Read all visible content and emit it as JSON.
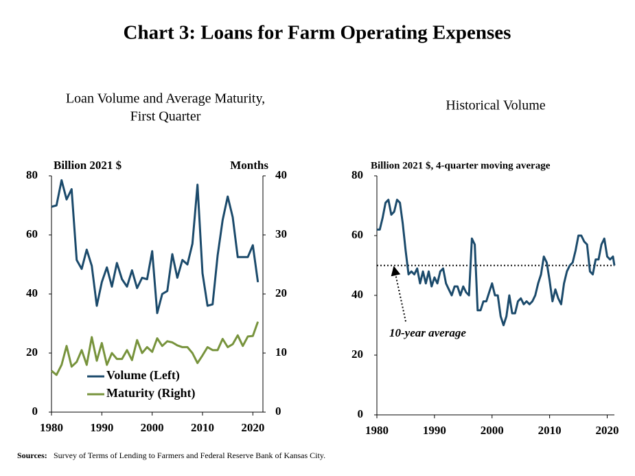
{
  "title": "Chart 3: Loans for Farm Operating Expenses",
  "source_label": "Sources:",
  "source": "Survey of Terms of Lending to Farmers and Federal Reserve Bank of Kansas City.",
  "chart_data": [
    {
      "type": "line",
      "subtitle": [
        "Loan Volume and Average Maturity,",
        "First Quarter"
      ],
      "y_label": "Billion 2021 $",
      "y2_label": "Months",
      "x": [
        1980,
        1981,
        1982,
        1983,
        1984,
        1985,
        1986,
        1987,
        1988,
        1989,
        1990,
        1991,
        1992,
        1993,
        1994,
        1995,
        1996,
        1997,
        1998,
        1999,
        2000,
        2001,
        2002,
        2003,
        2004,
        2005,
        2006,
        2007,
        2008,
        2009,
        2010,
        2011,
        2012,
        2013,
        2014,
        2015,
        2016,
        2017,
        2018,
        2019,
        2020,
        2021
      ],
      "series": [
        {
          "name": "Volume (Left)",
          "color": "#1b4a6b",
          "values": [
            69.5,
            70,
            78.5,
            72,
            75.5,
            51.5,
            48.5,
            55,
            49.5,
            36,
            44,
            49,
            42.5,
            50.5,
            45,
            42.5,
            48,
            42,
            45.5,
            45,
            54.5,
            33.5,
            40,
            41,
            53.5,
            45.5,
            51.5,
            50,
            57,
            77,
            47,
            36,
            36.5,
            53,
            65,
            73,
            66,
            52.5,
            52.5,
            52.5,
            56.5,
            44
          ]
        },
        {
          "name": "Maturity (Right)",
          "color": "#77933c",
          "axis": "y2",
          "values": [
            7,
            6.3,
            8,
            11.2,
            7.7,
            8.5,
            10.5,
            8,
            12.7,
            8.7,
            11.7,
            8,
            10,
            9,
            9,
            10.5,
            8.8,
            12.2,
            10,
            11,
            10.2,
            12.5,
            11.2,
            12,
            11.8,
            11.3,
            11,
            11,
            10,
            8.3,
            9.6,
            11,
            10.5,
            10.5,
            12.4,
            11,
            11.5,
            13,
            11.2,
            12.8,
            12.9,
            15.3
          ]
        }
      ],
      "xlim": [
        1980,
        2022
      ],
      "xticks": [
        1980,
        1990,
        2000,
        2010,
        2020
      ],
      "ylim": [
        0,
        80
      ],
      "yticks": [
        0,
        20,
        40,
        60,
        80
      ],
      "y2lim": [
        0,
        40
      ],
      "y2ticks": [
        0,
        10,
        20,
        30,
        40
      ],
      "legend": "lower left"
    },
    {
      "type": "line",
      "subtitle": [
        "Historical Volume"
      ],
      "y_label": "Billion 2021 $, 4-quarter moving average",
      "x": [
        1980,
        1980.5,
        1981,
        1981.5,
        1982,
        1982.5,
        1983,
        1983.5,
        1984,
        1984.5,
        1985,
        1985.5,
        1986,
        1986.5,
        1987,
        1987.5,
        1988,
        1988.5,
        1989,
        1989.5,
        1990,
        1990.5,
        1991,
        1991.5,
        1992,
        1992.5,
        1993,
        1993.5,
        1994,
        1994.5,
        1995,
        1995.5,
        1996,
        1996.5,
        1997,
        1997.5,
        1998,
        1998.5,
        1999,
        1999.5,
        2000,
        2000.5,
        2001,
        2001.5,
        2002,
        2002.5,
        2003,
        2003.5,
        2004,
        2004.5,
        2005,
        2005.5,
        2006,
        2006.5,
        2007,
        2007.5,
        2008,
        2008.5,
        2009,
        2009.5,
        2010,
        2010.5,
        2011,
        2011.5,
        2012,
        2012.5,
        2013,
        2013.5,
        2014,
        2014.5,
        2015,
        2015.5,
        2016,
        2016.5,
        2017,
        2017.5,
        2018,
        2018.5,
        2019,
        2019.5,
        2020,
        2020.5,
        2021,
        2021.25
      ],
      "series": [
        {
          "color": "#1b4a6b",
          "values": [
            62,
            62,
            66,
            71,
            72,
            67,
            68,
            72,
            71,
            64,
            55,
            47,
            48,
            47,
            49,
            44,
            48,
            44,
            48,
            43,
            46,
            44,
            48,
            49,
            44,
            42,
            40,
            43,
            43,
            40,
            43,
            41,
            40,
            59,
            57,
            35,
            35,
            38,
            38,
            41,
            44,
            40,
            40,
            33,
            30,
            33,
            40,
            34,
            34,
            38,
            39,
            37,
            38,
            37,
            38,
            40,
            44,
            47,
            53,
            51,
            45,
            38,
            42,
            39,
            37,
            44,
            48,
            50,
            51,
            55,
            60,
            60,
            58,
            57,
            48,
            47,
            52,
            52,
            57,
            59,
            53,
            52,
            53,
            50
          ]
        }
      ],
      "reference_line": 50,
      "annotation": "10-year average",
      "xlim": [
        1980,
        2021.25
      ],
      "xticks": [
        1980,
        1990,
        2000,
        2010,
        2020
      ],
      "ylim": [
        0,
        80
      ],
      "yticks": [
        0,
        20,
        40,
        60,
        80
      ]
    }
  ]
}
